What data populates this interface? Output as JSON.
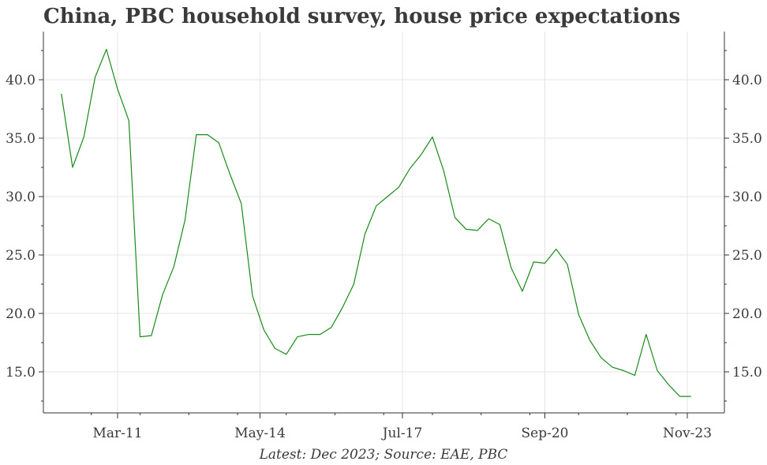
{
  "title": "China, PBC household survey, house price expectations",
  "caption": "Latest: Dec 2023; Source: EAE, PBC",
  "chart_data": {
    "type": "line",
    "title": "China, PBC household survey, house price expectations",
    "xlabel": "",
    "ylabel": "",
    "x_tick_labels": [
      "Mar-11",
      "May-14",
      "Jul-17",
      "Sep-20",
      "Nov-23"
    ],
    "y_ticks": [
      15.0,
      20.0,
      25.0,
      30.0,
      35.0,
      40.0
    ],
    "y_tick_labels": [
      "15.0",
      "20.0",
      "25.0",
      "30.0",
      "35.0",
      "40.0"
    ],
    "ylim": [
      11.4,
      44.0
    ],
    "grid": true,
    "series_color": "#1a8a1a",
    "series": [
      {
        "x": [
          "2009-12",
          "2010-03",
          "2010-06",
          "2010-09",
          "2010-12",
          "2011-03",
          "2011-06",
          "2011-09",
          "2011-12",
          "2012-03",
          "2012-06",
          "2012-09",
          "2012-12",
          "2013-03",
          "2013-06",
          "2013-09",
          "2013-12",
          "2014-03",
          "2014-06",
          "2014-09",
          "2014-12",
          "2015-03",
          "2015-06",
          "2015-09",
          "2015-12",
          "2016-03",
          "2016-06",
          "2016-09",
          "2016-12",
          "2017-03",
          "2017-06",
          "2017-09",
          "2017-12",
          "2018-03",
          "2018-06",
          "2018-09",
          "2018-12",
          "2019-03",
          "2019-06",
          "2019-09",
          "2019-12",
          "2020-03",
          "2020-06",
          "2020-09",
          "2020-12",
          "2021-03",
          "2021-06",
          "2021-09",
          "2021-12",
          "2022-03",
          "2022-06",
          "2022-09",
          "2022-12",
          "2023-03",
          "2023-06",
          "2023-09",
          "2023-12"
        ],
        "values": [
          38.8,
          32.5,
          35.1,
          40.2,
          42.6,
          39.2,
          36.5,
          18.0,
          18.1,
          21.6,
          24.0,
          28.0,
          35.3,
          35.3,
          34.6,
          31.9,
          29.4,
          21.5,
          18.6,
          17.0,
          16.5,
          18.0,
          18.2,
          18.2,
          18.8,
          20.5,
          22.5,
          26.8,
          29.2,
          30.0,
          30.8,
          32.4,
          33.6,
          35.1,
          32.2,
          28.2,
          27.2,
          27.1,
          28.1,
          27.6,
          23.9,
          21.9,
          24.4,
          24.3,
          25.5,
          24.2,
          19.9,
          17.7,
          16.2,
          15.4,
          15.1,
          14.7,
          18.2,
          15.1,
          13.9,
          12.9,
          12.9
        ]
      }
    ]
  }
}
